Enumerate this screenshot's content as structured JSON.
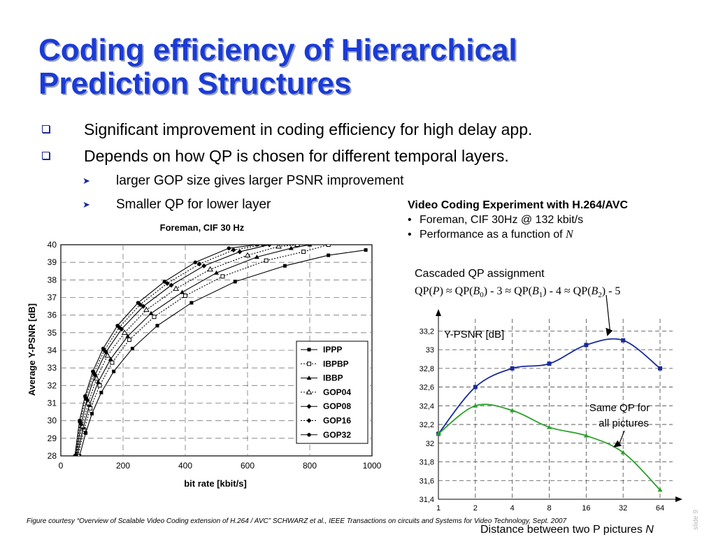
{
  "title": "Coding efficiency of Hierarchical Prediction Structures",
  "bullets": [
    "Significant improvement in coding efficiency for high delay app.",
    "Depends on how QP is chosen for different temporal layers."
  ],
  "sub_bullets": [
    "larger GOP size gives larger PSNR improvement",
    "Smaller QP for lower layer"
  ],
  "experiment": {
    "heading": "Video Coding Experiment with H.264/AVC",
    "lines": [
      "Foreman, CIF 30Hz @ 132 kbit/s",
      "Performance as a function of "
    ],
    "italic_n": "N"
  },
  "caption": "Figure courtesy “Overview of Scalable Video Coding extension of H.264 / AVC” SCHWARZ et al., IEEE Transactions on circuits and Systems for Video Technology, Sept. 2007",
  "slide_number": "slide 9",
  "chart_data": [
    {
      "type": "line",
      "title": "Foreman, CIF 30 Hz",
      "xlabel": "bit rate [kbit/s]",
      "ylabel": "Average Y-PSNR [dB]",
      "xlim": [
        0,
        1000
      ],
      "ylim": [
        28,
        40
      ],
      "xticks": [
        0,
        200,
        400,
        600,
        800,
        1000
      ],
      "yticks": [
        28,
        29,
        30,
        31,
        32,
        33,
        34,
        35,
        36,
        37,
        38,
        39,
        40
      ],
      "grid": true,
      "legend_position": "bottom-right",
      "series": [
        {
          "name": "IPPP",
          "values": [
            [
              60,
              28
            ],
            [
              80,
              29.3
            ],
            [
              100,
              30.4
            ],
            [
              130,
              31.6
            ],
            [
              170,
              32.8
            ],
            [
              230,
              34.1
            ],
            [
              310,
              35.4
            ],
            [
              420,
              36.7
            ],
            [
              560,
              37.9
            ],
            [
              720,
              38.8
            ],
            [
              860,
              39.4
            ],
            [
              980,
              39.7
            ]
          ]
        },
        {
          "name": "IBPBP",
          "values": [
            [
              55,
              28
            ],
            [
              75,
              29.5
            ],
            [
              95,
              30.7
            ],
            [
              125,
              32.0
            ],
            [
              165,
              33.3
            ],
            [
              220,
              34.6
            ],
            [
              300,
              35.9
            ],
            [
              400,
              37.1
            ],
            [
              520,
              38.2
            ],
            [
              660,
              39.1
            ],
            [
              780,
              39.6
            ],
            [
              860,
              40
            ]
          ]
        },
        {
          "name": "IBBP",
          "values": [
            [
              52,
              28
            ],
            [
              72,
              29.6
            ],
            [
              92,
              30.9
            ],
            [
              120,
              32.2
            ],
            [
              160,
              33.5
            ],
            [
              215,
              34.8
            ],
            [
              290,
              36.1
            ],
            [
              390,
              37.3
            ],
            [
              500,
              38.4
            ],
            [
              630,
              39.3
            ],
            [
              740,
              39.8
            ],
            [
              800,
              40
            ]
          ]
        },
        {
          "name": "GOP04",
          "values": [
            [
              50,
              28
            ],
            [
              68,
              29.7
            ],
            [
              88,
              31.0
            ],
            [
              115,
              32.4
            ],
            [
              150,
              33.7
            ],
            [
              205,
              35.0
            ],
            [
              275,
              36.3
            ],
            [
              370,
              37.5
            ],
            [
              480,
              38.6
            ],
            [
              600,
              39.4
            ],
            [
              700,
              39.9
            ],
            [
              760,
              40
            ]
          ]
        },
        {
          "name": "GOP08",
          "values": [
            [
              48,
              28
            ],
            [
              65,
              29.8
            ],
            [
              84,
              31.2
            ],
            [
              110,
              32.6
            ],
            [
              145,
              33.9
            ],
            [
              195,
              35.2
            ],
            [
              265,
              36.5
            ],
            [
              355,
              37.7
            ],
            [
              460,
              38.8
            ],
            [
              575,
              39.6
            ],
            [
              670,
              40
            ]
          ]
        },
        {
          "name": "GOP16",
          "values": [
            [
              46,
              28
            ],
            [
              62,
              29.9
            ],
            [
              80,
              31.3
            ],
            [
              106,
              32.7
            ],
            [
              140,
              34.0
            ],
            [
              188,
              35.3
            ],
            [
              255,
              36.6
            ],
            [
              342,
              37.8
            ],
            [
              445,
              38.9
            ],
            [
              555,
              39.7
            ],
            [
              650,
              40
            ]
          ]
        },
        {
          "name": "GOP32",
          "values": [
            [
              45,
              28
            ],
            [
              60,
              30.0
            ],
            [
              78,
              31.4
            ],
            [
              103,
              32.8
            ],
            [
              136,
              34.1
            ],
            [
              182,
              35.4
            ],
            [
              248,
              36.7
            ],
            [
              333,
              37.9
            ],
            [
              432,
              39.0
            ],
            [
              540,
              39.8
            ],
            [
              630,
              40
            ]
          ]
        }
      ]
    },
    {
      "type": "line",
      "xlabel": "Distance between two P pictures N",
      "xlabel_main": "Distance between two P pictures ",
      "xlabel_var": "N",
      "ylabel": "Y-PSNR [dB]",
      "categories": [
        "1",
        "2",
        "4",
        "8",
        "16",
        "32",
        "64"
      ],
      "ylim": [
        31.4,
        33.3
      ],
      "yticks": [
        "31,4",
        "31,6",
        "31,8",
        "32",
        "32,2",
        "32,4",
        "32,6",
        "32,8",
        "33",
        "33,2"
      ],
      "grid": true,
      "series": [
        {
          "label": "cascaded",
          "color": "#1a2a9c",
          "values": [
            32.1,
            32.6,
            32.8,
            32.85,
            33.05,
            33.1,
            32.8
          ]
        },
        {
          "label": "same",
          "color": "#2aa02a",
          "values": [
            32.1,
            32.4,
            32.35,
            32.17,
            32.08,
            31.9,
            31.5
          ]
        }
      ],
      "annotations": {
        "cascaded_title": "Cascaded QP assignment",
        "cascaded_formula": {
          "p1": "QP(",
          "p": "P",
          "p2": ") ≈ QP(",
          "b": "B",
          "s0": "0",
          "p3": ") - 3 ≈ QP(",
          "s1": "1",
          "p4": ") - 4 ≈ QP(",
          "s2": "2",
          "p5": ") - 5"
        },
        "same_line1": "Same QP for",
        "same_line2": "all pictures"
      }
    }
  ]
}
